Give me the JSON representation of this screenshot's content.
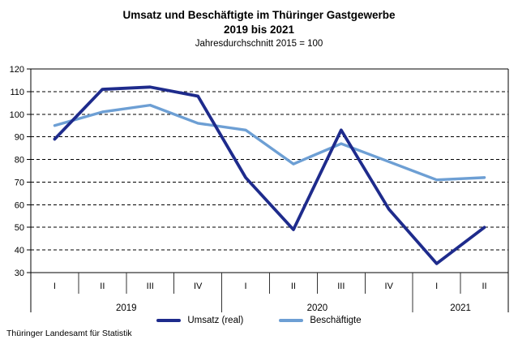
{
  "chart_data": {
    "type": "line",
    "title_line1": "Umsatz und Beschäftigte im Thüringer Gastgewerbe",
    "title_line2": "2019 bis 2021",
    "subtitle": "Jahresdurchschnitt 2015 = 100",
    "ylim": [
      30,
      120
    ],
    "ytick_step": 10,
    "yticks": [
      120,
      110,
      100,
      90,
      80,
      70,
      60,
      50,
      40,
      30
    ],
    "grid": "horizontal-dashed",
    "legend_position": "bottom",
    "x_groups": [
      {
        "year": "2019",
        "quarters": [
          "I",
          "II",
          "III",
          "IV"
        ]
      },
      {
        "year": "2020",
        "quarters": [
          "I",
          "II",
          "III",
          "IV"
        ]
      },
      {
        "year": "2021",
        "quarters": [
          "I",
          "II"
        ]
      }
    ],
    "series": [
      {
        "name": "Umsatz (real)",
        "color": "#1e2b8c",
        "values": [
          89,
          111,
          112,
          108,
          72,
          49,
          93,
          58,
          34,
          50
        ]
      },
      {
        "name": "Beschäftigte",
        "color": "#6d9fd4",
        "values": [
          95,
          101,
          104,
          96,
          93,
          78,
          87,
          79,
          71,
          72
        ]
      }
    ]
  },
  "footer": {
    "source": "Thüringer Landesamt für Statistik"
  }
}
